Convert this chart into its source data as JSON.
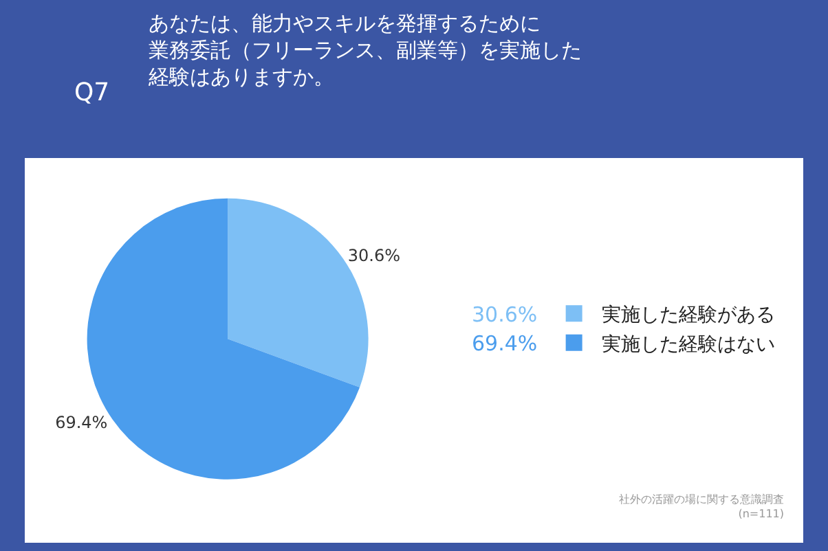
{
  "chart_data": {
    "type": "pie",
    "title": "あなたは、能力やスキルを発揮するために業務委託（フリーランス、副業等）を実施した経験はありますか。",
    "annotations": [
      "Q7",
      "社外の活躍の場に関する意識調査\n(n=111)"
    ],
    "categories": [
      "実施した経験がある",
      "実施した経験はない"
    ],
    "values": [
      30.6,
      69.4
    ],
    "value_labels": [
      "30.6%",
      "69.4%"
    ],
    "colors": [
      "#7dbff5",
      "#4b9ded"
    ],
    "legend": "right"
  }
}
